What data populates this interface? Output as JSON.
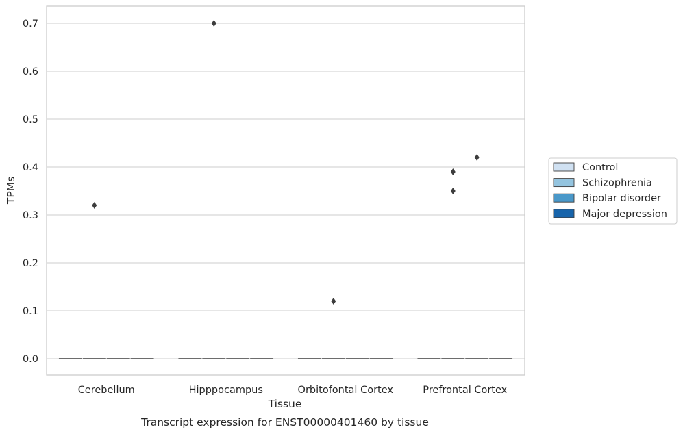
{
  "chart_data": {
    "type": "box",
    "title": "",
    "caption": "Transcript expression for ENST00000401460 by tissue",
    "xlabel": "Tissue",
    "ylabel": "TPMs",
    "ylim": [
      -0.035,
      0.735
    ],
    "yticks": [
      0.0,
      0.1,
      0.2,
      0.3,
      0.4,
      0.5,
      0.6,
      0.7
    ],
    "grid": true,
    "legend_position": "right",
    "categories": [
      "Cerebellum",
      "Hipppocampus",
      "Orbitofontal Cortex",
      "Prefrontal Cortex"
    ],
    "series": [
      {
        "name": "Control",
        "color": "#d0e1f2",
        "medians": [
          0.0,
          0.0,
          0.0,
          0.0
        ],
        "outliers": [
          [],
          [],
          [],
          []
        ]
      },
      {
        "name": "Schizophrenia",
        "color": "#94c4df",
        "medians": [
          0.0,
          0.0,
          0.0,
          0.0
        ],
        "outliers": [
          [
            0.32
          ],
          [
            0.7
          ],
          [
            0.12
          ],
          [
            0.39,
            0.35
          ]
        ]
      },
      {
        "name": "Bipolar disorder",
        "color": "#4a98c9",
        "medians": [
          0.0,
          0.0,
          0.0,
          0.0
        ],
        "outliers": [
          [],
          [],
          [],
          [
            0.42
          ]
        ]
      },
      {
        "name": "Major depression",
        "color": "#1764ab",
        "medians": [
          0.0,
          0.0,
          0.0,
          0.0
        ],
        "outliers": [
          [],
          [],
          [],
          []
        ]
      }
    ]
  }
}
